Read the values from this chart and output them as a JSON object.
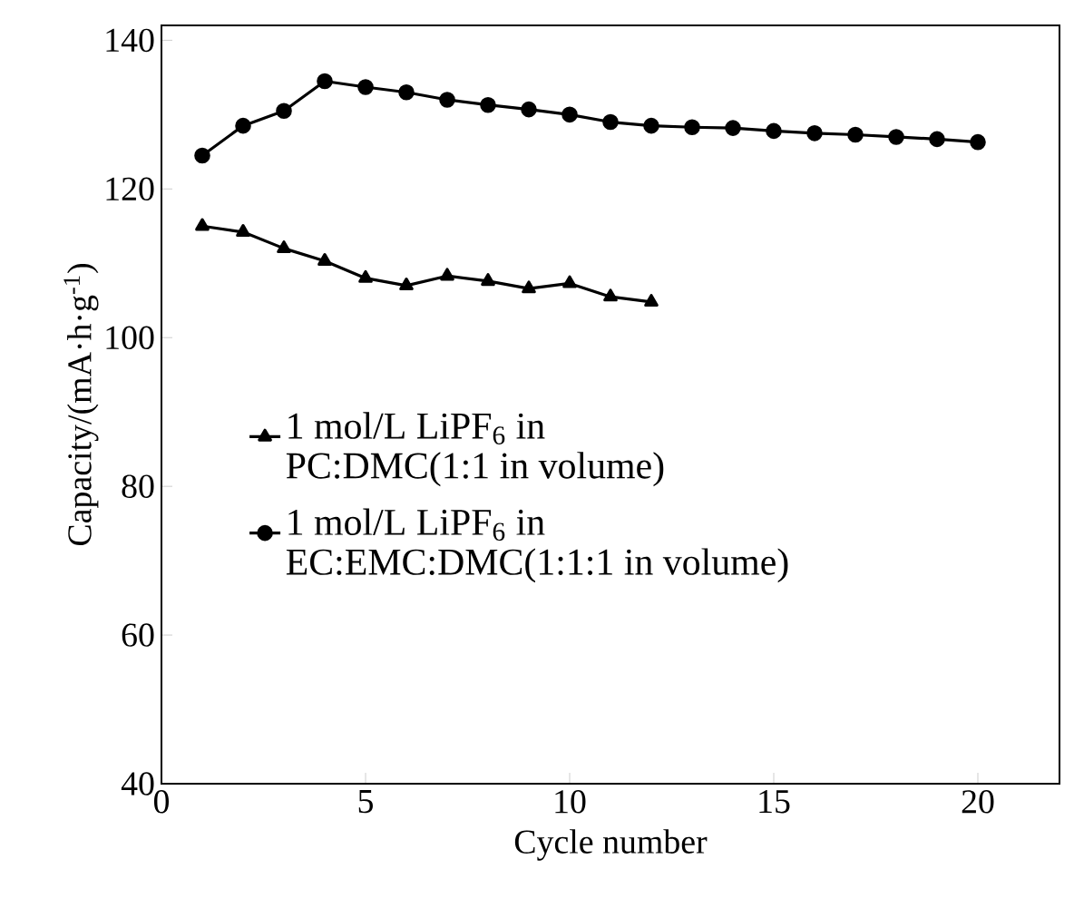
{
  "chart_data": {
    "type": "line",
    "xlabel": "Cycle number",
    "ylabel": "Capacity/(mA·h·g$^{-1}$)",
    "xlim": [
      0,
      22
    ],
    "ylim": [
      40,
      142
    ],
    "xticks": [
      0,
      5,
      10,
      15,
      20
    ],
    "yticks": [
      40,
      60,
      80,
      100,
      120,
      140
    ],
    "legend": "left",
    "grid": false,
    "line_style": "solid",
    "series": [
      {
        "name": "1 mol/L LiPF$_{6}$ in PC:DMC(1:1 in volume)",
        "color": "#000000",
        "marker": "triangle",
        "x": [
          1,
          2,
          3,
          4,
          5,
          6,
          7,
          8,
          9,
          10,
          11,
          12
        ],
        "values": [
          115,
          114.2,
          112,
          110.3,
          108,
          107,
          108.3,
          107.6,
          106.6,
          107.3,
          105.5,
          104.8
        ]
      },
      {
        "name": "1 mol/L LiPF$_{6}$ in EC:EMC:DMC(1:1:1 in volume)",
        "color": "#000000",
        "marker": "circle",
        "x": [
          1,
          2,
          3,
          4,
          5,
          6,
          7,
          8,
          9,
          10,
          11,
          12,
          13,
          14,
          15,
          16,
          17,
          18,
          19,
          20
        ],
        "values": [
          124.5,
          128.5,
          130.5,
          134.5,
          133.7,
          133,
          132,
          131.3,
          130.7,
          130,
          129,
          128.5,
          128.3,
          128.2,
          127.8,
          127.5,
          127.3,
          127,
          126.7,
          126.3
        ]
      }
    ]
  }
}
